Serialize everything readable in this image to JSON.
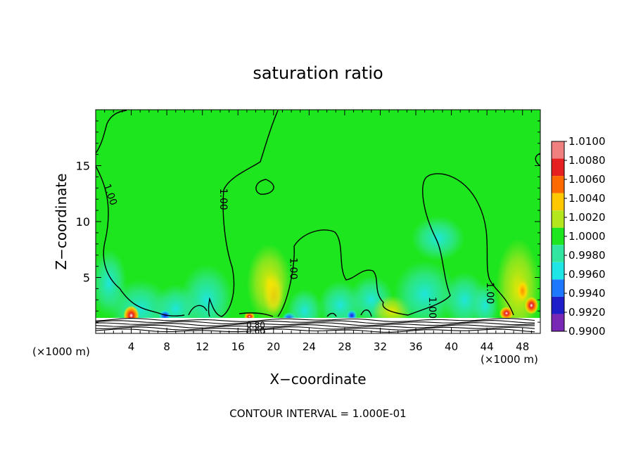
{
  "chart_data": {
    "type": "heatmap",
    "title": "saturation ratio",
    "xlabel": "X−coordinate",
    "ylabel": "Z−coordinate",
    "x_unit_label": "(×1000 m)",
    "z_unit_label": "(×1000 m)",
    "footer": "CONTOUR INTERVAL = 1.000E-01",
    "xlim": [
      0,
      50
    ],
    "ylim": [
      0,
      20
    ],
    "x_ticks": [
      "4",
      "8",
      "12",
      "16",
      "20",
      "24",
      "28",
      "32",
      "36",
      "40",
      "44",
      "48"
    ],
    "y_ticks": [
      "5",
      "10",
      "15"
    ],
    "background_value": 1.0,
    "background_color": "#1ee61e",
    "colorbar": {
      "labels": [
        "1.0100",
        "1.0080",
        "1.0060",
        "1.0040",
        "1.0020",
        "1.0000",
        "0.9980",
        "0.9960",
        "0.9940",
        "0.9920",
        "0.9900"
      ],
      "colors": [
        "#f08080",
        "#e62020",
        "#ff6a00",
        "#ffc800",
        "#b4e61e",
        "#1ee61e",
        "#32e6a0",
        "#1ee6e6",
        "#1e78ff",
        "#1e1ec8",
        "#7828b4"
      ]
    },
    "contour_labels": [
      {
        "text": "1.00",
        "x": 1.6,
        "z": 12.4
      },
      {
        "text": "1.00",
        "x": 14.3,
        "z": 12.0
      },
      {
        "text": "1.00",
        "x": 22.2,
        "z": 5.8
      },
      {
        "text": "1.00",
        "x": 37.8,
        "z": 2.3
      },
      {
        "text": "1.00",
        "x": 44.3,
        "z": 3.6
      },
      {
        "text": "0.80",
        "x": 18.0,
        "z": 0.7
      },
      {
        "text": "0.60",
        "x": 18.0,
        "z": 0.2
      }
    ]
  }
}
